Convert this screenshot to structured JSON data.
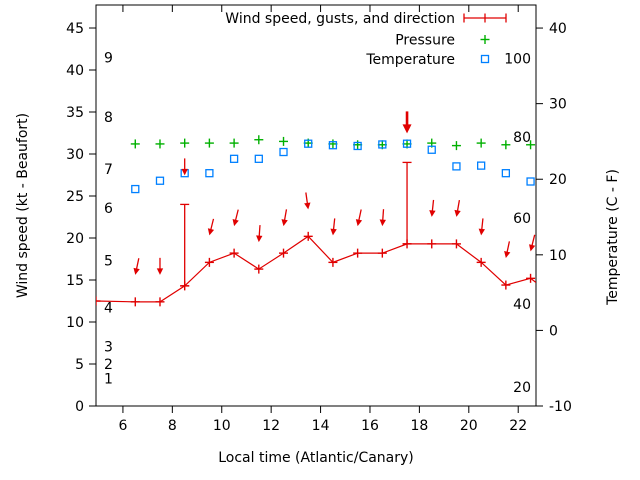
{
  "figure": {
    "background": "#ffffff",
    "text_color": "#000000"
  },
  "chart_data": {
    "type": "line",
    "title": "",
    "xlabel": "Local time (Atlantic/Canary)",
    "ylabel_left": "Wind speed (kt - Beaufort)",
    "ylabel_right": "Temperature (C - F)",
    "legend": {
      "position": "top-right-inside",
      "entries": [
        "Wind speed, gusts, and direction",
        "Pressure",
        "Temperature"
      ]
    },
    "x_axis": {
      "label": "Local time (Atlantic/Canary)",
      "range": [
        4.91,
        22.72
      ],
      "ticks": [
        6,
        8,
        10,
        12,
        14,
        16,
        18,
        20,
        22
      ]
    },
    "y_axis_left": {
      "label": "Wind speed (kt - Beaufort)",
      "range_kt": [
        0,
        47.74
      ],
      "ticks_kt": [
        0,
        5,
        10,
        15,
        20,
        25,
        30,
        35,
        40,
        45
      ],
      "beaufort_inner_labels": [
        {
          "text": "1",
          "kt": 3.3
        },
        {
          "text": "2",
          "kt": 5.0
        },
        {
          "text": "3",
          "kt": 7.1
        },
        {
          "text": "4",
          "kt": 11.7
        },
        {
          "text": "5",
          "kt": 17.3
        },
        {
          "text": "6",
          "kt": 23.6
        },
        {
          "text": "7",
          "kt": 28.2
        },
        {
          "text": "8",
          "kt": 34.4
        },
        {
          "text": "9",
          "kt": 41.5
        }
      ]
    },
    "y_axis_right": {
      "label": "Temperature (C - F)",
      "range_c": [
        -10,
        43.05
      ],
      "ticks_c": [
        -10,
        0,
        10,
        20,
        30,
        40
      ],
      "fahrenheit_inner_labels": [
        {
          "text": "20",
          "c": -7.5
        },
        {
          "text": "40",
          "c": 3.5
        },
        {
          "text": "60",
          "c": 14.9
        },
        {
          "text": "80",
          "c": 25.6
        },
        {
          "text": "100",
          "c": 36.0
        }
      ]
    },
    "series": {
      "wind": {
        "name": "Wind speed, gusts, and direction",
        "color": "#e00000",
        "marker": "plus",
        "t": [
          4.91,
          6.5,
          7.5,
          8.5,
          9.5,
          10.5,
          11.5,
          12.5,
          13.5,
          14.5,
          15.5,
          16.5,
          17.5,
          18.5,
          19.5,
          20.5,
          21.5,
          22.5,
          22.72
        ],
        "kt": [
          12.5,
          12.4,
          12.4,
          14.3,
          17.1,
          18.2,
          16.3,
          18.2,
          20.2,
          17.1,
          18.2,
          18.2,
          19.3,
          19.3,
          19.3,
          17.1,
          14.4,
          15.2,
          14.7
        ],
        "gust_kt": [
          null,
          null,
          null,
          24,
          null,
          null,
          null,
          null,
          null,
          null,
          null,
          null,
          29,
          null,
          null,
          null,
          null,
          null,
          null
        ],
        "has_marker": [
          true,
          true,
          true,
          true,
          true,
          true,
          true,
          true,
          true,
          true,
          true,
          true,
          true,
          true,
          true,
          true,
          true,
          true,
          false
        ],
        "arrows": {
          "t": [
            6.5,
            7.5,
            8.5,
            9.5,
            10.5,
            11.5,
            12.5,
            13.5,
            14.5,
            15.5,
            16.5,
            17.5,
            18.5,
            19.5,
            20.5,
            21.5,
            22.5
          ],
          "angle_deg": [
            12,
            0,
            0,
            14,
            14,
            4,
            10,
            -8,
            6,
            12,
            4,
            0,
            6,
            10,
            6,
            12,
            14
          ],
          "bold": [
            false,
            false,
            false,
            false,
            false,
            false,
            false,
            false,
            false,
            false,
            false,
            true,
            false,
            false,
            false,
            false,
            false
          ]
        }
      },
      "pressure": {
        "name": "Pressure",
        "color": "#00b000",
        "marker": "plus",
        "note": "no pressure scale is drawn; values are plotted positions expressed on the left kt axis",
        "t": [
          6.5,
          7.5,
          8.5,
          9.5,
          10.5,
          11.5,
          12.5,
          13.5,
          14.5,
          15.5,
          16.5,
          17.5,
          18.5,
          19.5,
          20.5,
          21.5,
          22.5
        ],
        "kt_equiv": [
          31.2,
          31.2,
          31.3,
          31.3,
          31.3,
          31.7,
          31.5,
          31.3,
          31.2,
          31.1,
          31.1,
          31.2,
          31.3,
          31.0,
          31.3,
          31.1,
          31.1
        ]
      },
      "temperature": {
        "name": "Temperature",
        "color": "#0080ff",
        "marker": "open-square",
        "t": [
          6.5,
          7.5,
          8.5,
          9.5,
          10.5,
          11.5,
          12.5,
          13.5,
          14.5,
          15.5,
          16.5,
          17.5,
          18.5,
          19.5,
          20.5,
          21.5,
          22.5
        ],
        "c": [
          18.7,
          19.8,
          20.8,
          20.8,
          22.7,
          22.7,
          23.6,
          24.7,
          24.5,
          24.4,
          24.6,
          24.7,
          23.9,
          21.7,
          21.8,
          20.8,
          19.7
        ]
      }
    }
  }
}
